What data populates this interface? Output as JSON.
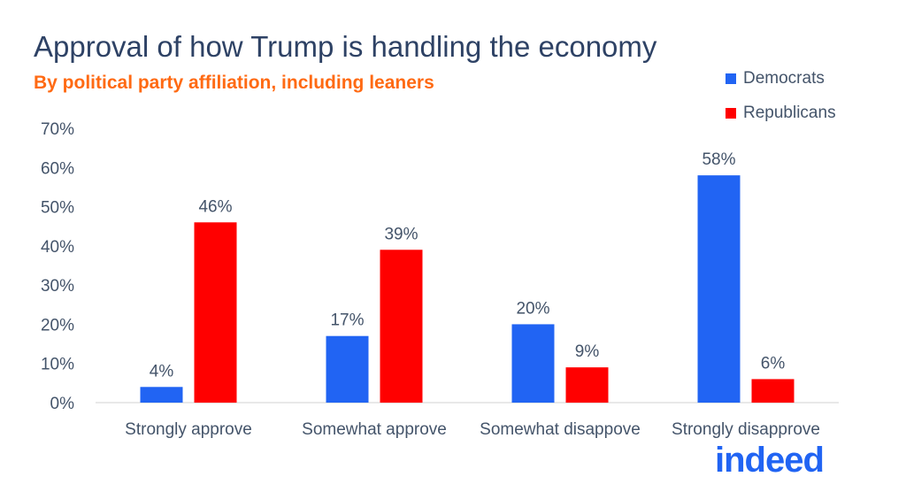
{
  "chart_data": {
    "type": "bar",
    "title": "Approval of how Trump is handling the economy",
    "subtitle": "By political party affiliation, including leaners",
    "categories": [
      "Strongly approve",
      "Somewhat approve",
      "Somewhat disappove",
      "Strongly disapprove"
    ],
    "series": [
      {
        "name": "Democrats",
        "values": [
          4,
          17,
          20,
          58
        ],
        "labels": [
          "4%",
          "17%",
          "20%",
          "58%"
        ],
        "color": "#2164f3"
      },
      {
        "name": "Republicans",
        "values": [
          46,
          39,
          9,
          6
        ],
        "labels": [
          "46%",
          "39%",
          "9%",
          "6%"
        ],
        "color": "#ff0000"
      }
    ],
    "yticks": [
      "0%",
      "10%",
      "20%",
      "30%",
      "40%",
      "50%",
      "60%",
      "70%"
    ],
    "ylim": [
      0,
      70
    ],
    "grid": false,
    "legend": "top-right"
  },
  "logo": "indeed"
}
